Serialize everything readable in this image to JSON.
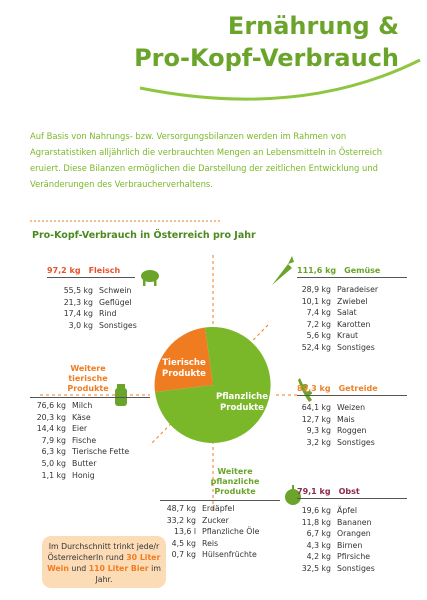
{
  "header": {
    "title": [
      "Ernährung &",
      "Pro-Kopf-Verbrauch"
    ]
  },
  "intro": "Auf Basis von Nahrungs- bzw. Versorgungsbilanzen werden im Rahmen von Agrarstatistiken alljährlich die verbrauchten Mengen an Lebensmitteln in Österreich eruiert. Diese Bilanzen ermöglichen die Darstellung der zeitlichen Entwicklung und Veränderungen des Verbraucherverhaltens.",
  "subtitle": "Pro-Kopf-Verbrauch in Österreich pro Jahr",
  "pie": [
    "Tierische Produkte",
    "Pflanzliche Produkte"
  ],
  "groups": [
    {
      "total": "97,2 kg",
      "name": "Fleisch",
      "items": [
        [
          "55,5 kg",
          "Schwein"
        ],
        [
          "21,3 kg",
          "Geflügel"
        ],
        [
          "17,4 kg",
          "Rind"
        ],
        [
          "3,0 kg",
          "Sonstiges"
        ]
      ]
    },
    {
      "total": "111,6 kg",
      "name": "Gemüse",
      "items": [
        [
          "28,9 kg",
          "Paradeiser"
        ],
        [
          "10,1 kg",
          "Zwiebel"
        ],
        [
          "7,4 kg",
          "Salat"
        ],
        [
          "7,2 kg",
          "Karotten"
        ],
        [
          "5,6 kg",
          "Kraut"
        ],
        [
          "52,4 kg",
          "Sonstiges"
        ]
      ]
    },
    {
      "name": "Weitere tierische Produkte",
      "items": [
        [
          "76,6 kg",
          "Milch"
        ],
        [
          "20,3 kg",
          "Käse"
        ],
        [
          "14,4 kg",
          "Eier"
        ],
        [
          "7,9 kg",
          "Fische"
        ],
        [
          "6,3 kg",
          "Tierische Fette"
        ],
        [
          "5,0 kg",
          "Butter"
        ],
        [
          "1,1 kg",
          "Honig"
        ]
      ]
    },
    {
      "total": "89,3 kg",
      "name": "Getreide",
      "items": [
        [
          "64,1 kg",
          "Weizen"
        ],
        [
          "12,7 kg",
          "Mais"
        ],
        [
          "9,3 kg",
          "Roggen"
        ],
        [
          "3,2 kg",
          "Sonstiges"
        ]
      ]
    },
    {
      "name": "Weitere pflanzliche Produkte",
      "items": [
        [
          "48,7 kg",
          "Erdäpfel"
        ],
        [
          "33,2 kg",
          "Zucker"
        ],
        [
          "13,6 l",
          "Pflanzliche Öle"
        ],
        [
          "4,5 kg",
          "Reis"
        ],
        [
          "0,7 kg",
          "Hülsenfrüchte"
        ]
      ]
    },
    {
      "total": "79,1 kg",
      "name": "Obst",
      "items": [
        [
          "19,6 kg",
          "Äpfel"
        ],
        [
          "11,8 kg",
          "Bananen"
        ],
        [
          "6,7 kg",
          "Orangen"
        ],
        [
          "4,3 kg",
          "Birnen"
        ],
        [
          "4,2 kg",
          "Pfirsiche"
        ],
        [
          "32,5 kg",
          "Sonstiges"
        ]
      ]
    }
  ],
  "note": [
    "Im Durchschnitt trinkt jede/r ÖsterreicherIn rund ",
    "30 Liter Wein",
    " und ",
    "110 Liter Bier",
    " im Jahr."
  ]
}
